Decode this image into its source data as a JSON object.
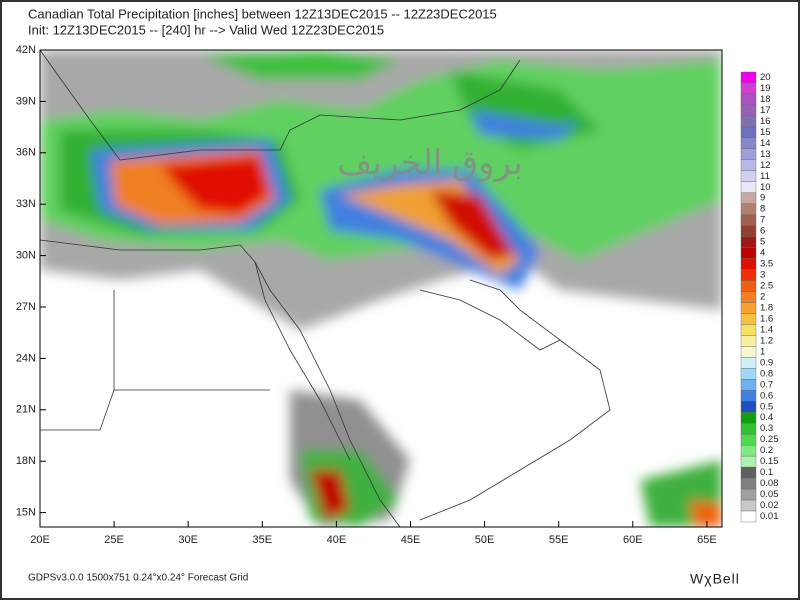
{
  "header": {
    "line1": "Canadian Total Precipitation [inches] between 12Z13DEC2015 -- 12Z23DEC2015",
    "line2": "Init: 12Z13DEC2015 -- [240] hr --> Valid Wed 12Z23DEC2015"
  },
  "map": {
    "lat_labels": [
      "42N",
      "39N",
      "36N",
      "33N",
      "30N",
      "27N",
      "24N",
      "21N",
      "18N",
      "15N"
    ],
    "lon_labels": [
      "20E",
      "25E",
      "30E",
      "35E",
      "40E",
      "45E",
      "50E",
      "55E",
      "60E",
      "65E"
    ],
    "watermark": "بروق الخريف"
  },
  "colorbar": [
    {
      "label": "20",
      "color": "#ee00ee"
    },
    {
      "label": "19",
      "color": "#d040d0"
    },
    {
      "label": "18",
      "color": "#b050c0"
    },
    {
      "label": "17",
      "color": "#9860b0"
    },
    {
      "label": "16",
      "color": "#8070b0"
    },
    {
      "label": "15",
      "color": "#7070c0"
    },
    {
      "label": "14",
      "color": "#8888c8"
    },
    {
      "label": "13",
      "color": "#a0a0d8"
    },
    {
      "label": "12",
      "color": "#b8b8e8"
    },
    {
      "label": "11",
      "color": "#d0d0f0"
    },
    {
      "label": "10",
      "color": "#e8e8f8"
    },
    {
      "label": "9",
      "color": "#c8a8a0"
    },
    {
      "label": "8",
      "color": "#b08070"
    },
    {
      "label": "7",
      "color": "#a06050"
    },
    {
      "label": "6",
      "color": "#904030"
    },
    {
      "label": "5",
      "color": "#a01818"
    },
    {
      "label": "4",
      "color": "#c00000"
    },
    {
      "label": "3.5",
      "color": "#e01000"
    },
    {
      "label": "3",
      "color": "#f03000"
    },
    {
      "label": "2.5",
      "color": "#f06010"
    },
    {
      "label": "2",
      "color": "#f08020"
    },
    {
      "label": "1.8",
      "color": "#f8a030"
    },
    {
      "label": "1.6",
      "color": "#f8c040"
    },
    {
      "label": "1.4",
      "color": "#f8e060"
    },
    {
      "label": "1.2",
      "color": "#f8f0a0"
    },
    {
      "label": "1",
      "color": "#f8f8d0"
    },
    {
      "label": "0.9",
      "color": "#d0f0f8"
    },
    {
      "label": "0.8",
      "color": "#a0d8f8"
    },
    {
      "label": "0.7",
      "color": "#70b0f0"
    },
    {
      "label": "0.6",
      "color": "#4080e0"
    },
    {
      "label": "0.5",
      "color": "#2050c0"
    },
    {
      "label": "0.4",
      "color": "#10a010"
    },
    {
      "label": "0.3",
      "color": "#30c030"
    },
    {
      "label": "0.25",
      "color": "#50d850"
    },
    {
      "label": "0.2",
      "color": "#80e880"
    },
    {
      "label": "0.15",
      "color": "#b0f0b0"
    },
    {
      "label": "0.1",
      "color": "#606060"
    },
    {
      "label": "0.08",
      "color": "#808080"
    },
    {
      "label": "0.05",
      "color": "#a0a0a0"
    },
    {
      "label": "0.02",
      "color": "#c8c8c8"
    },
    {
      "label": "0.01",
      "color": "#ffffff"
    }
  ],
  "footer": {
    "left": "GDPSv3.0.0 1500x751 0.24°x0.24° Forecast Grid",
    "brand": "WχBell"
  }
}
